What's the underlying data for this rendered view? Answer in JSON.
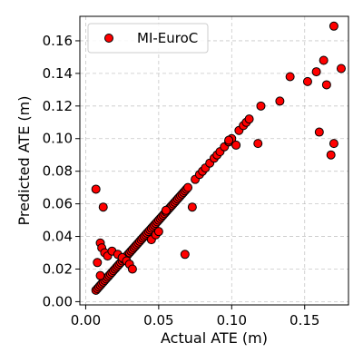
{
  "chart_data": {
    "type": "scatter",
    "xlabel": "Actual ATE (m)",
    "ylabel": "Predicted ATE (m)",
    "xlim": [
      -0.004,
      0.18
    ],
    "ylim": [
      -0.002,
      0.175
    ],
    "xticks": [
      0.0,
      0.05,
      0.1,
      0.15
    ],
    "xtick_labels": [
      "0.00",
      "0.05",
      "0.10",
      "0.15"
    ],
    "yticks": [
      0.0,
      0.02,
      0.04,
      0.06,
      0.08,
      0.1,
      0.12,
      0.14,
      0.16
    ],
    "ytick_labels": [
      "0.00",
      "0.02",
      "0.04",
      "0.06",
      "0.08",
      "0.10",
      "0.12",
      "0.14",
      "0.16"
    ],
    "grid": true,
    "legend_position": "top-left",
    "marker_color": "#ff0000",
    "series": [
      {
        "name": "MI-EuroC",
        "x": [
          0.007,
          0.008,
          0.009,
          0.01,
          0.011,
          0.012,
          0.013,
          0.014,
          0.015,
          0.016,
          0.017,
          0.018,
          0.019,
          0.02,
          0.021,
          0.022,
          0.023,
          0.024,
          0.025,
          0.026,
          0.027,
          0.028,
          0.029,
          0.03,
          0.031,
          0.032,
          0.033,
          0.034,
          0.035,
          0.036,
          0.037,
          0.038,
          0.039,
          0.04,
          0.041,
          0.042,
          0.043,
          0.044,
          0.045,
          0.046,
          0.047,
          0.048,
          0.049,
          0.05,
          0.051,
          0.052,
          0.053,
          0.054,
          0.055,
          0.056,
          0.057,
          0.058,
          0.059,
          0.06,
          0.061,
          0.062,
          0.063,
          0.064,
          0.065,
          0.066,
          0.067,
          0.068,
          0.069,
          0.07,
          0.075,
          0.078,
          0.08,
          0.082,
          0.085,
          0.088,
          0.09,
          0.092,
          0.095,
          0.098,
          0.1,
          0.105,
          0.108,
          0.11,
          0.112,
          0.12,
          0.133,
          0.14,
          0.152,
          0.158,
          0.163,
          0.165,
          0.17,
          0.175,
          0.007,
          0.008,
          0.01,
          0.012,
          0.01,
          0.011,
          0.013,
          0.015,
          0.018,
          0.022,
          0.025,
          0.028,
          0.03,
          0.032,
          0.045,
          0.048,
          0.05,
          0.055,
          0.068,
          0.073,
          0.098,
          0.103,
          0.118,
          0.16,
          0.17,
          0.168
        ],
        "y": [
          0.007,
          0.008,
          0.009,
          0.01,
          0.011,
          0.012,
          0.013,
          0.014,
          0.015,
          0.016,
          0.017,
          0.018,
          0.019,
          0.02,
          0.021,
          0.022,
          0.023,
          0.024,
          0.025,
          0.026,
          0.027,
          0.028,
          0.029,
          0.03,
          0.031,
          0.032,
          0.033,
          0.034,
          0.035,
          0.036,
          0.037,
          0.038,
          0.039,
          0.04,
          0.041,
          0.042,
          0.043,
          0.044,
          0.045,
          0.046,
          0.047,
          0.048,
          0.049,
          0.05,
          0.051,
          0.052,
          0.053,
          0.054,
          0.055,
          0.056,
          0.057,
          0.058,
          0.059,
          0.06,
          0.061,
          0.062,
          0.063,
          0.064,
          0.065,
          0.066,
          0.067,
          0.068,
          0.069,
          0.07,
          0.075,
          0.078,
          0.08,
          0.082,
          0.085,
          0.088,
          0.09,
          0.092,
          0.095,
          0.098,
          0.1,
          0.105,
          0.108,
          0.11,
          0.112,
          0.12,
          0.123,
          0.138,
          0.135,
          0.141,
          0.148,
          0.133,
          0.169,
          0.143,
          0.069,
          0.024,
          0.016,
          0.058,
          0.036,
          0.033,
          0.03,
          0.028,
          0.031,
          0.029,
          0.027,
          0.025,
          0.023,
          0.02,
          0.038,
          0.041,
          0.043,
          0.056,
          0.029,
          0.058,
          0.099,
          0.096,
          0.097,
          0.104,
          0.097,
          0.09
        ]
      }
    ]
  }
}
